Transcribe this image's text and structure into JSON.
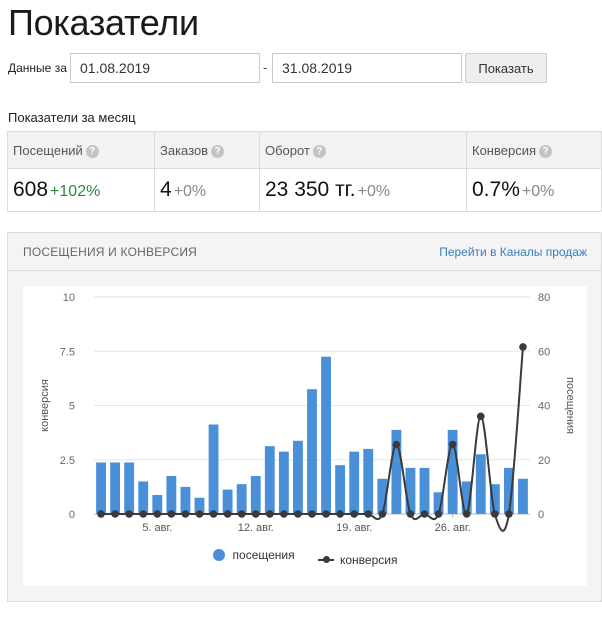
{
  "page": {
    "title": "Показатели"
  },
  "filter": {
    "label": "Данные за",
    "date_from": "01.08.2019",
    "separator": "-",
    "date_to": "31.08.2019",
    "show_button": "Показать"
  },
  "metrics_section": {
    "title": "Показатели за месяц",
    "metrics": [
      {
        "label": "Посещений",
        "value": "608",
        "delta": "+102%"
      },
      {
        "label": "Заказов",
        "value": "4",
        "delta": "+0%"
      },
      {
        "label": "Оборот",
        "value": "23 350 тг.",
        "delta": "+0%"
      },
      {
        "label": "Конверсия",
        "value": "0.7%",
        "delta": "+0%"
      }
    ],
    "help_icon": "?"
  },
  "chart_panel": {
    "title": "ПОСЕЩЕНИЯ И КОНВЕРСИЯ",
    "link": "Перейти в Каналы продаж",
    "colors": {
      "bars": "#4a90d9",
      "line": "#3a3a3a",
      "positive_delta": "#2d8a3a",
      "link": "#3a7dbf"
    }
  },
  "chart_data": {
    "type": "bar",
    "x": [
      "1",
      "2",
      "3",
      "4",
      "5",
      "6",
      "7",
      "8",
      "9",
      "10",
      "11",
      "12",
      "13",
      "14",
      "15",
      "16",
      "17",
      "18",
      "19",
      "20",
      "21",
      "22",
      "23",
      "24",
      "25",
      "26",
      "27",
      "28",
      "29",
      "30",
      "31"
    ],
    "x_tick_labels": [
      "5. авг.",
      "12. авг.",
      "19. авг.",
      "26. авг."
    ],
    "x_tick_days": [
      5,
      12,
      19,
      26
    ],
    "series": [
      {
        "name": "посещения",
        "type": "bar",
        "axis": "right",
        "values": [
          19,
          19,
          19,
          12,
          7,
          14,
          10,
          6,
          33,
          9,
          11,
          14,
          25,
          23,
          27,
          46,
          58,
          18,
          23,
          24,
          13,
          31,
          17,
          17,
          8,
          31,
          12,
          22,
          11,
          17,
          13
        ]
      },
      {
        "name": "конверсия",
        "type": "line",
        "axis": "left",
        "values": [
          0,
          0,
          0,
          0,
          0,
          0,
          0,
          0,
          0,
          0,
          0,
          0,
          0,
          0,
          0,
          0,
          0,
          0,
          0,
          0,
          0,
          3.2,
          0,
          0,
          0,
          3.2,
          0,
          4.5,
          0,
          0,
          7.7
        ]
      }
    ],
    "y_left": {
      "label": "конверсия",
      "range": [
        0,
        10
      ],
      "ticks": [
        "0",
        "2.5",
        "5",
        "7.5",
        "10"
      ]
    },
    "y_right": {
      "label": "посещения",
      "range": [
        0,
        80
      ],
      "ticks": [
        "0",
        "20",
        "40",
        "60",
        "80"
      ]
    },
    "grid": true,
    "legend": "bottom"
  }
}
